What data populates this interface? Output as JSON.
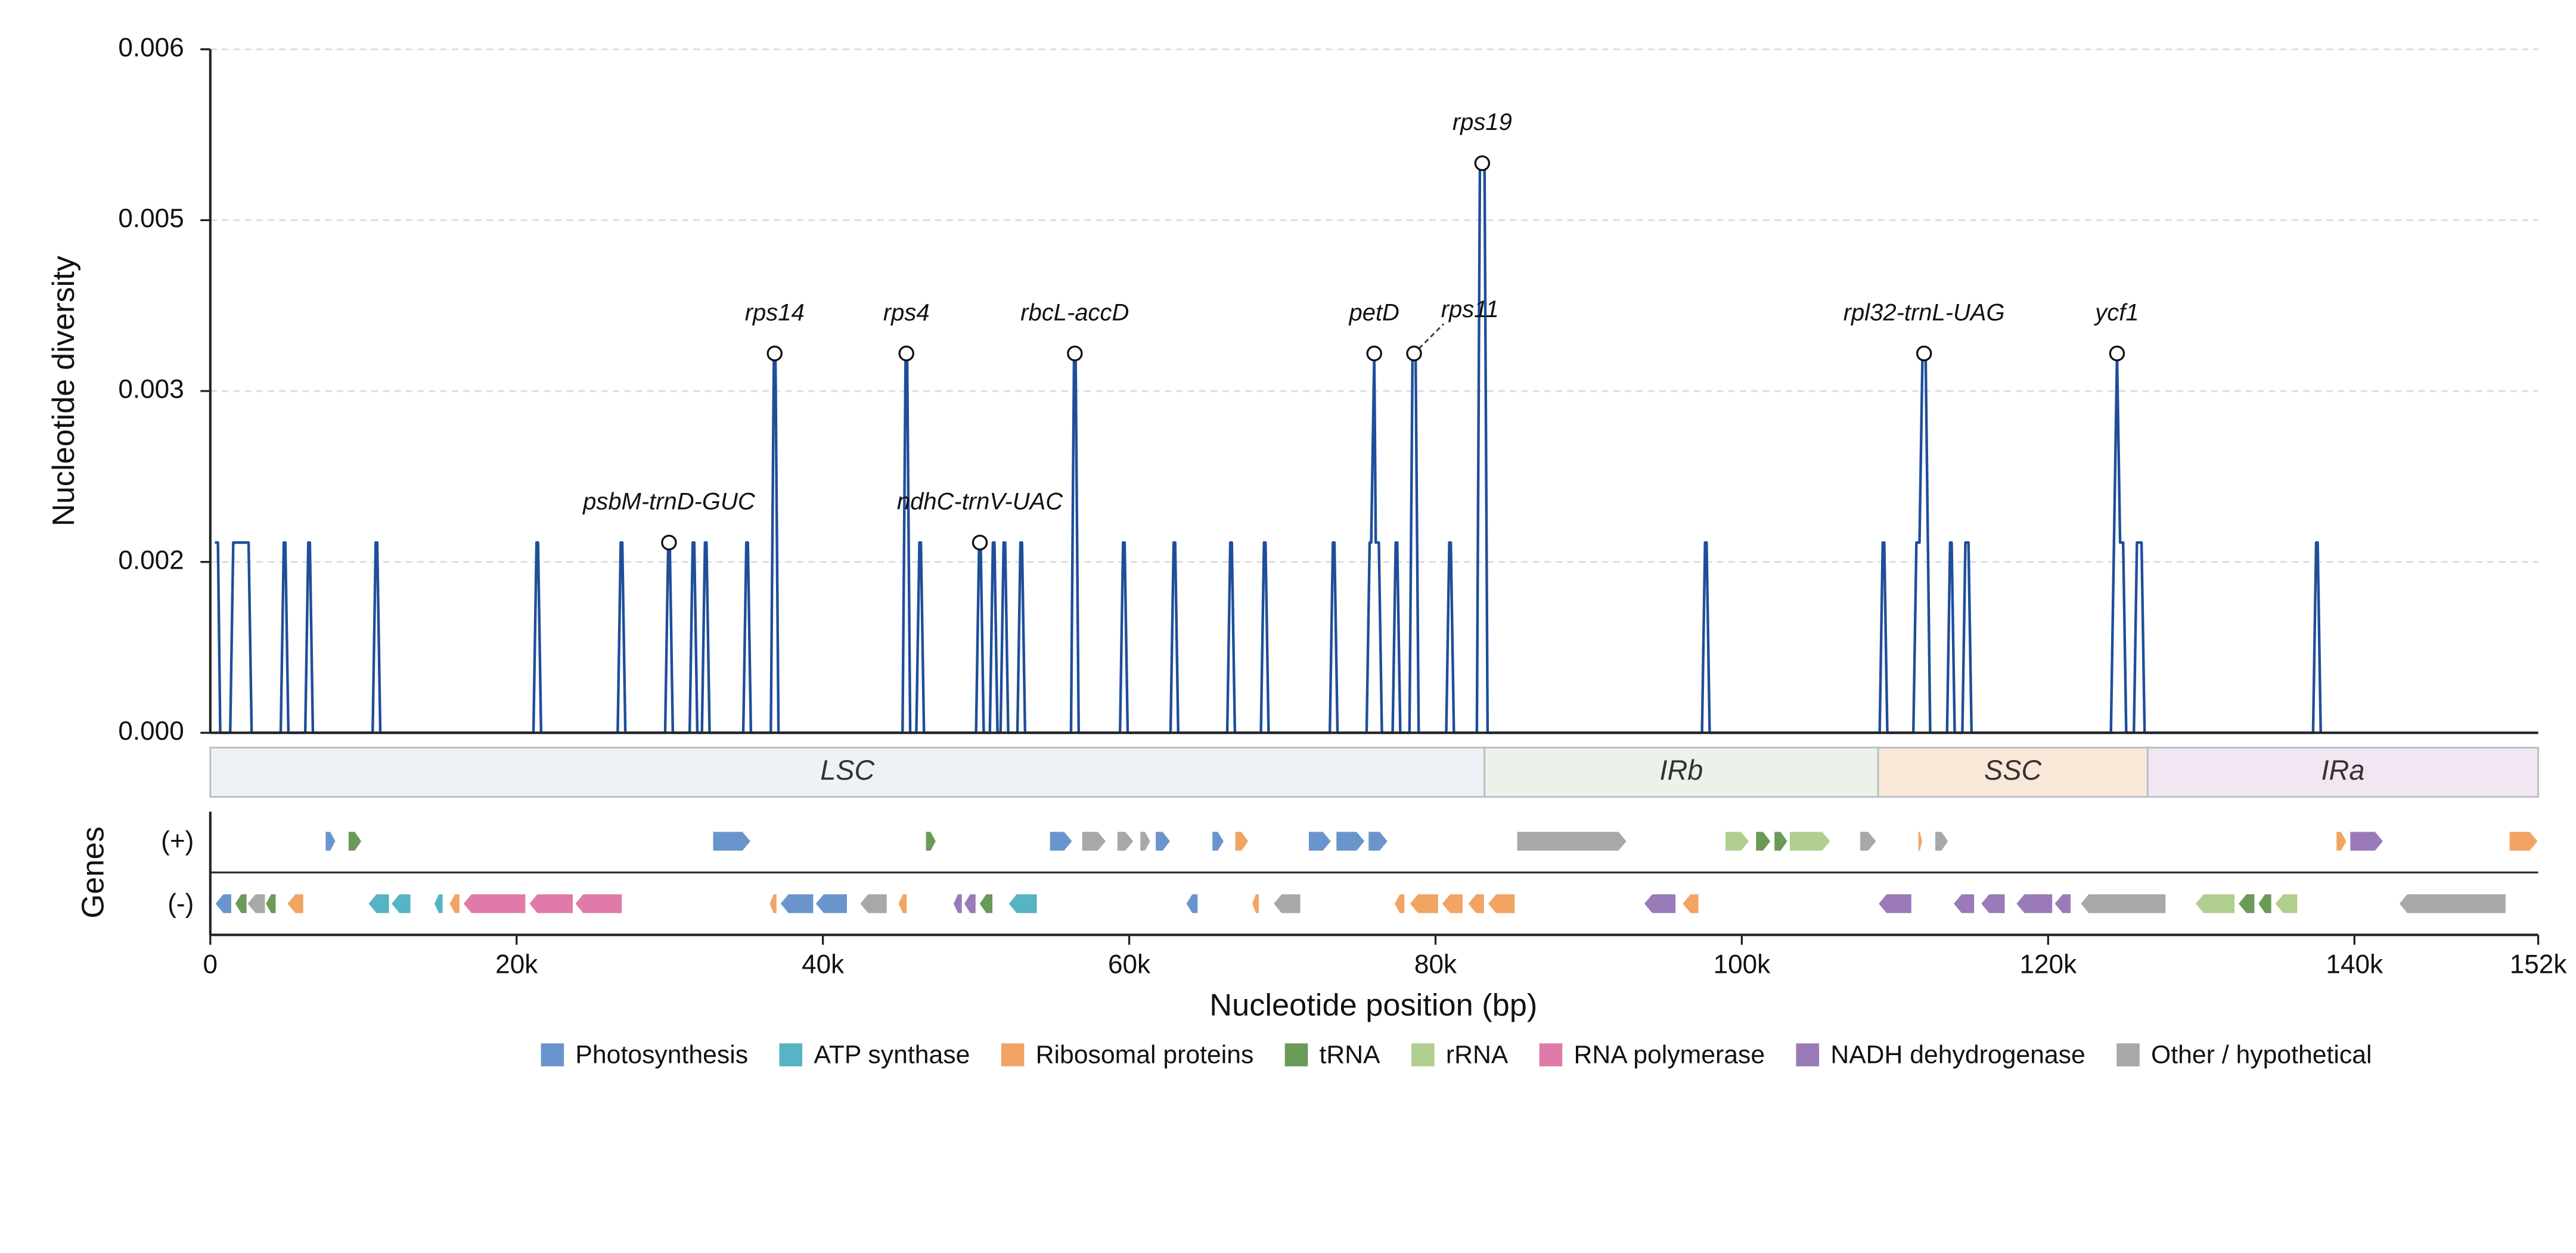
{
  "chart_data": [
    {
      "type": "line",
      "ylabel": "Nucleotide diversity",
      "color": "#1f4e9a",
      "xlim": [
        0,
        152000
      ],
      "ylim": [
        0,
        0.006
      ],
      "yticks": [
        {
          "value": 0,
          "label": "0.000"
        },
        {
          "value": 0.0015,
          "label": "0.002"
        },
        0.003,
        {
          "value": 0.0045,
          "label": "0.005"
        },
        0.006
      ],
      "grid": true,
      "x": [
        300,
        500,
        650,
        1300,
        1500,
        2500,
        2700,
        4600,
        4800,
        4900,
        5100,
        6200,
        6400,
        6500,
        6700,
        10600,
        10800,
        10900,
        11100,
        21100,
        21300,
        21400,
        21600,
        26600,
        26800,
        26900,
        27100,
        29700,
        29900,
        30000,
        30200,
        31300,
        31500,
        31600,
        31800,
        32100,
        32300,
        32400,
        32600,
        34800,
        35000,
        35100,
        35300,
        36600,
        36800,
        36900,
        37100,
        45200,
        45400,
        45500,
        45700,
        46100,
        46300,
        46400,
        46600,
        50000,
        50200,
        50300,
        50500,
        50900,
        51100,
        51200,
        51400,
        51600,
        51800,
        51900,
        52100,
        52700,
        52900,
        53000,
        53200,
        56200,
        56400,
        56500,
        56700,
        59400,
        59600,
        59700,
        59900,
        62700,
        62900,
        63000,
        63200,
        66400,
        66600,
        66700,
        66900,
        68600,
        68800,
        68900,
        69100,
        73100,
        73300,
        73400,
        73600,
        75500,
        75700,
        75800,
        76000,
        76100,
        76300,
        76500,
        77200,
        77400,
        77500,
        77700,
        78300,
        78500,
        78700,
        78900,
        80700,
        80900,
        81000,
        81200,
        82700,
        82900,
        83200,
        83400,
        97400,
        97600,
        97700,
        97900,
        109000,
        109200,
        109300,
        109500,
        111200,
        111400,
        111600,
        111800,
        112000,
        112300,
        113400,
        113600,
        113700,
        113900,
        114400,
        114600,
        114800,
        115000,
        124100,
        124500,
        124700,
        124900,
        125100,
        125600,
        125800,
        126100,
        126300,
        137300,
        137500,
        137600,
        137800
      ],
      "values": [
        0.00167,
        0.00167,
        0,
        0,
        0.00167,
        0.00167,
        0,
        0,
        0.00167,
        0.00167,
        0,
        0,
        0.00167,
        0.00167,
        0,
        0,
        0.00167,
        0.00167,
        0,
        0,
        0.00167,
        0.00167,
        0,
        0,
        0.00167,
        0.00167,
        0,
        0,
        0.00167,
        0.00167,
        0,
        0,
        0.00167,
        0.00167,
        0,
        0,
        0.00167,
        0.00167,
        0,
        0,
        0.00167,
        0.00167,
        0,
        0,
        0.00333,
        0.00333,
        0,
        0,
        0.00333,
        0.00333,
        0,
        0,
        0.00167,
        0.00167,
        0,
        0,
        0.00167,
        0.00167,
        0,
        0,
        0.00167,
        0.00167,
        0,
        0,
        0.00167,
        0.00167,
        0,
        0,
        0.00167,
        0.00167,
        0,
        0,
        0.00333,
        0.00333,
        0,
        0,
        0.00167,
        0.00167,
        0,
        0,
        0.00167,
        0.00167,
        0,
        0,
        0.00167,
        0.00167,
        0,
        0,
        0.00167,
        0.00167,
        0,
        0,
        0.00167,
        0.00167,
        0,
        0,
        0.00167,
        0.00167,
        0.00333,
        0.00167,
        0.00167,
        0,
        0,
        0.00167,
        0.00167,
        0,
        0,
        0.00333,
        0.00333,
        0,
        0,
        0.00167,
        0.00167,
        0,
        0,
        0.005,
        0.005,
        0,
        0,
        0.00167,
        0.00167,
        0,
        0,
        0.00167,
        0.00167,
        0,
        0,
        0.00167,
        0.00167,
        0.00333,
        0.00333,
        0,
        0,
        0.00167,
        0.00167,
        0,
        0,
        0.00167,
        0.00167,
        0,
        0,
        0.00333,
        0.00167,
        0.00167,
        0,
        0,
        0.00167,
        0.00167,
        0,
        0,
        0.00167,
        0.00167,
        0
      ],
      "annotations": [
        {
          "text": "psbM-trnD-GUC",
          "x": 29950,
          "y": 0.00167
        },
        {
          "text": "rps14",
          "x": 36850,
          "y": 0.00333
        },
        {
          "text": "rps4",
          "x": 45450,
          "y": 0.00333
        },
        {
          "text": "ndhC-trnV-UAC",
          "x": 50250,
          "y": 0.00167
        },
        {
          "text": "rbcL-accD",
          "x": 56450,
          "y": 0.00333
        },
        {
          "text": "petD",
          "x": 76000,
          "y": 0.00333
        },
        {
          "text": "rps11",
          "x": 78600,
          "y": 0.00333
        },
        {
          "text": "rps19",
          "x": 83050,
          "y": 0.005
        },
        {
          "text": "rpl32-trnL-UAG",
          "x": 111900,
          "y": 0.00333
        },
        {
          "text": "ycf1",
          "x": 124500,
          "y": 0.00333
        }
      ]
    },
    {
      "type": "gene-map",
      "ylabel": "Genes",
      "xlabel": "Nucleotide position (bp)",
      "xlim": [
        0,
        152000
      ],
      "xticks": [
        0,
        {
          "value": 20000,
          "label": "20k"
        },
        {
          "value": 40000,
          "label": "40k"
        },
        {
          "value": 60000,
          "label": "60k"
        },
        {
          "value": 80000,
          "label": "80k"
        },
        {
          "value": 100000,
          "label": "100k"
        },
        {
          "value": 120000,
          "label": "120k"
        },
        {
          "value": 140000,
          "label": "140k"
        },
        {
          "value": 152000,
          "label": "152k"
        }
      ],
      "regions": [
        {
          "name": "LSC",
          "start": 0,
          "end": 83200,
          "color": "#eef2f6"
        },
        {
          "name": "IRb",
          "start": 83200,
          "end": 108900,
          "color": "#ecf2ea"
        },
        {
          "name": "SSC",
          "start": 108900,
          "end": 126500,
          "color": "#f9e8d8"
        },
        {
          "name": "IRa",
          "start": 126500,
          "end": 152000,
          "color": "#f1e6f1"
        }
      ],
      "legend": [
        {
          "name": "Photosynthesis",
          "color": "#6a95cc"
        },
        {
          "name": "ATP synthase",
          "color": "#56b4c4"
        },
        {
          "name": "Ribosomal proteins",
          "color": "#f2a465"
        },
        {
          "name": "tRNA",
          "color": "#6a9a58"
        },
        {
          "name": "rRNA",
          "color": "#b0cf8e"
        },
        {
          "name": "RNA polymerase",
          "color": "#e07aa8"
        },
        {
          "name": "NADH dehydrogenase",
          "color": "#9a7ab8"
        },
        {
          "name": "Other / hypothetical",
          "color": "#a8a8a8"
        }
      ],
      "strands": [
        {
          "label": "(+)",
          "direction": 1,
          "genes": [
            {
              "start": 7500,
              "end": 8200,
              "category": "Photosynthesis"
            },
            {
              "start": 9000,
              "end": 9900,
              "category": "tRNA"
            },
            {
              "start": 32800,
              "end": 35300,
              "category": "Photosynthesis"
            },
            {
              "start": 46700,
              "end": 47400,
              "category": "tRNA"
            },
            {
              "start": 54800,
              "end": 56300,
              "category": "Photosynthesis"
            },
            {
              "start": 56900,
              "end": 58500,
              "category": "Other / hypothetical"
            },
            {
              "start": 59200,
              "end": 60300,
              "category": "Other / hypothetical"
            },
            {
              "start": 60700,
              "end": 61400,
              "category": "Other / hypothetical"
            },
            {
              "start": 61700,
              "end": 62700,
              "category": "Photosynthesis"
            },
            {
              "start": 65400,
              "end": 66200,
              "category": "Photosynthesis"
            },
            {
              "start": 66900,
              "end": 67800,
              "category": "Ribosomal proteins"
            },
            {
              "start": 71700,
              "end": 73200,
              "category": "Photosynthesis"
            },
            {
              "start": 73500,
              "end": 75400,
              "category": "Photosynthesis"
            },
            {
              "start": 75600,
              "end": 76900,
              "category": "Photosynthesis"
            },
            {
              "start": 85300,
              "end": 92500,
              "category": "Other / hypothetical"
            },
            {
              "start": 98900,
              "end": 100500,
              "category": "rRNA"
            },
            {
              "start": 100900,
              "end": 101900,
              "category": "tRNA"
            },
            {
              "start": 102100,
              "end": 103000,
              "category": "tRNA"
            },
            {
              "start": 103100,
              "end": 105800,
              "category": "rRNA"
            },
            {
              "start": 107700,
              "end": 108800,
              "category": "Other / hypothetical"
            },
            {
              "start": 111500,
              "end": 111800,
              "category": "Ribosomal proteins"
            },
            {
              "start": 112600,
              "end": 113500,
              "category": "Other / hypothetical"
            },
            {
              "start": 138800,
              "end": 139500,
              "category": "Ribosomal proteins"
            },
            {
              "start": 139700,
              "end": 141900,
              "category": "NADH dehydrogenase"
            },
            {
              "start": 150100,
              "end": 152000,
              "category": "Ribosomal proteins"
            }
          ]
        },
        {
          "label": "(-)",
          "direction": -1,
          "genes": [
            {
              "start": 300,
              "end": 1400,
              "category": "Photosynthesis"
            },
            {
              "start": 1600,
              "end": 2400,
              "category": "tRNA"
            },
            {
              "start": 2400,
              "end": 3600,
              "category": "Other / hypothetical"
            },
            {
              "start": 3600,
              "end": 4300,
              "category": "tRNA"
            },
            {
              "start": 5000,
              "end": 6100,
              "category": "Ribosomal proteins"
            },
            {
              "start": 10300,
              "end": 11700,
              "category": "ATP synthase"
            },
            {
              "start": 11800,
              "end": 13100,
              "category": "ATP synthase"
            },
            {
              "start": 14600,
              "end": 15200,
              "category": "ATP synthase"
            },
            {
              "start": 15600,
              "end": 16300,
              "category": "Ribosomal proteins"
            },
            {
              "start": 16500,
              "end": 20600,
              "category": "RNA polymerase"
            },
            {
              "start": 20800,
              "end": 23700,
              "category": "RNA polymerase"
            },
            {
              "start": 23800,
              "end": 26900,
              "category": "RNA polymerase"
            },
            {
              "start": 36500,
              "end": 37000,
              "category": "Ribosomal proteins"
            },
            {
              "start": 37200,
              "end": 39400,
              "category": "Photosynthesis"
            },
            {
              "start": 39500,
              "end": 41600,
              "category": "Photosynthesis"
            },
            {
              "start": 42400,
              "end": 44200,
              "category": "Other / hypothetical"
            },
            {
              "start": 44900,
              "end": 45500,
              "category": "Ribosomal proteins"
            },
            {
              "start": 48500,
              "end": 49100,
              "category": "NADH dehydrogenase"
            },
            {
              "start": 49200,
              "end": 50000,
              "category": "NADH dehydrogenase"
            },
            {
              "start": 50200,
              "end": 51100,
              "category": "tRNA"
            },
            {
              "start": 52100,
              "end": 54000,
              "category": "ATP synthase"
            },
            {
              "start": 63700,
              "end": 64500,
              "category": "Photosynthesis"
            },
            {
              "start": 68000,
              "end": 68500,
              "category": "Ribosomal proteins"
            },
            {
              "start": 69400,
              "end": 71200,
              "category": "Other / hypothetical"
            },
            {
              "start": 77300,
              "end": 78000,
              "category": "Ribosomal proteins"
            },
            {
              "start": 78300,
              "end": 80200,
              "category": "Ribosomal proteins"
            },
            {
              "start": 80400,
              "end": 81800,
              "category": "Ribosomal proteins"
            },
            {
              "start": 82100,
              "end": 83200,
              "category": "Ribosomal proteins"
            },
            {
              "start": 83400,
              "end": 85200,
              "category": "Ribosomal proteins"
            },
            {
              "start": 93600,
              "end": 95700,
              "category": "NADH dehydrogenase"
            },
            {
              "start": 96100,
              "end": 97200,
              "category": "Ribosomal proteins"
            },
            {
              "start": 108900,
              "end": 111100,
              "category": "NADH dehydrogenase"
            },
            {
              "start": 113800,
              "end": 115200,
              "category": "NADH dehydrogenase"
            },
            {
              "start": 115600,
              "end": 117200,
              "category": "NADH dehydrogenase"
            },
            {
              "start": 117900,
              "end": 120300,
              "category": "NADH dehydrogenase"
            },
            {
              "start": 120400,
              "end": 121500,
              "category": "NADH dehydrogenase"
            },
            {
              "start": 122100,
              "end": 127700,
              "category": "Other / hypothetical"
            },
            {
              "start": 129600,
              "end": 132200,
              "category": "rRNA"
            },
            {
              "start": 132400,
              "end": 133500,
              "category": "tRNA"
            },
            {
              "start": 133700,
              "end": 134600,
              "category": "tRNA"
            },
            {
              "start": 134800,
              "end": 136300,
              "category": "rRNA"
            },
            {
              "start": 142900,
              "end": 149900,
              "category": "Other / hypothetical"
            }
          ]
        }
      ]
    }
  ]
}
